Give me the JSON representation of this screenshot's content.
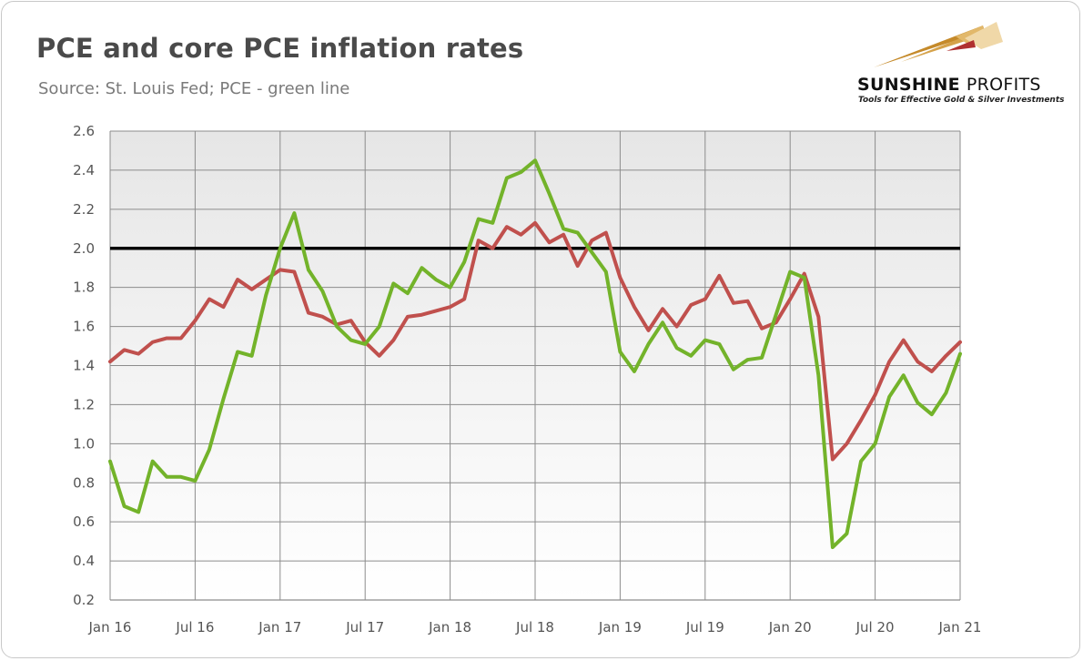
{
  "header": {
    "title": "PCE and core PCE inflation rates",
    "subtitle": "Source: St. Louis Fed; PCE - green line"
  },
  "logo": {
    "name_bold": "SUNSHINE",
    "name_thin": "PROFITS",
    "tagline": "Tools for Effective Gold & Silver Investments"
  },
  "colors": {
    "pce": "#73b32a",
    "core_pce": "#c0504d",
    "reference": "#000000",
    "plot_bg_top": "#e6e6e6",
    "plot_bg_bottom": "#ffffff",
    "grid": "#8c8c8c"
  },
  "chart_data": {
    "type": "line",
    "title": "PCE and core PCE inflation rates",
    "subtitle": "Source: St. Louis Fed; PCE - green line",
    "x_tick_labels": [
      "Jan 16",
      "Jul 16",
      "Jan 17",
      "Jul 17",
      "Jan 18",
      "Jul 18",
      "Jan 19",
      "Jul 19",
      "Jan 20",
      "Jul 20",
      "Jan 21"
    ],
    "y_tick_labels": [
      "0.2",
      "0.4",
      "0.6",
      "0.8",
      "1.0",
      "1.2",
      "1.4",
      "1.6",
      "1.8",
      "2.0",
      "2.2",
      "2.4",
      "2.6"
    ],
    "x_start": "2016-01",
    "x_end": "2021-01",
    "ylim": [
      0.2,
      2.6
    ],
    "grid": true,
    "legend": "none",
    "reference_line": {
      "y": 2.0
    },
    "series": [
      {
        "color_key": "core_pce",
        "values": [
          1.42,
          1.48,
          1.46,
          1.52,
          1.54,
          1.54,
          1.63,
          1.74,
          1.7,
          1.84,
          1.79,
          1.84,
          1.89,
          1.88,
          1.67,
          1.65,
          1.61,
          1.63,
          1.52,
          1.45,
          1.53,
          1.65,
          1.66,
          1.68,
          1.7,
          1.74,
          2.04,
          2.0,
          2.11,
          2.07,
          2.13,
          2.03,
          2.07,
          1.91,
          2.04,
          2.08,
          1.85,
          1.7,
          1.58,
          1.69,
          1.6,
          1.71,
          1.74,
          1.86,
          1.72,
          1.73,
          1.59,
          1.62,
          1.74,
          1.87,
          1.65,
          0.92,
          1.0,
          1.12,
          1.25,
          1.42,
          1.53,
          1.42,
          1.37,
          1.45,
          1.52
        ]
      },
      {
        "color_key": "pce",
        "values": [
          0.91,
          0.68,
          0.65,
          0.91,
          0.83,
          0.83,
          0.81,
          0.97,
          1.23,
          1.47,
          1.45,
          1.76,
          2.0,
          2.18,
          1.89,
          1.78,
          1.6,
          1.53,
          1.51,
          1.6,
          1.82,
          1.77,
          1.9,
          1.84,
          1.8,
          1.93,
          2.15,
          2.13,
          2.36,
          2.39,
          2.45,
          2.28,
          2.1,
          2.08,
          1.98,
          1.88,
          1.47,
          1.37,
          1.51,
          1.62,
          1.49,
          1.45,
          1.53,
          1.51,
          1.38,
          1.43,
          1.44,
          1.66,
          1.88,
          1.85,
          1.35,
          0.47,
          0.54,
          0.91,
          1.0,
          1.24,
          1.35,
          1.21,
          1.15,
          1.26,
          1.46
        ]
      }
    ]
  }
}
